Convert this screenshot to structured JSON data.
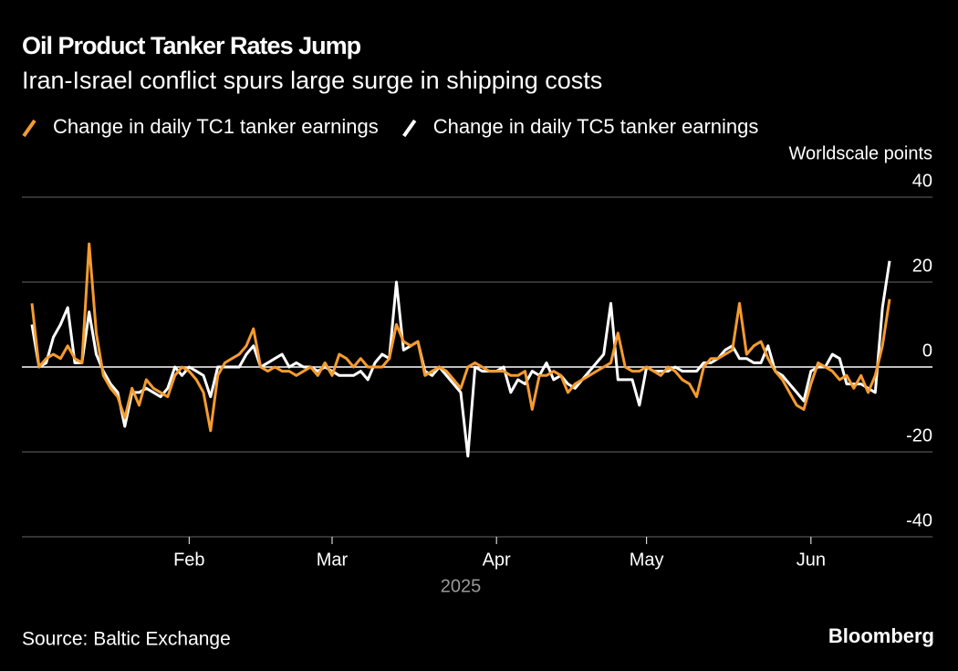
{
  "chart_data": {
    "type": "line",
    "title": "Oil Product Tanker Rates Jump",
    "subtitle": "Iran-Israel conflict spurs large surge in shipping costs",
    "ylabel": "Worldscale points",
    "xlabel": "2025",
    "source": "Source: Baltic Exchange",
    "credit": "Bloomberg",
    "categories": [
      null,
      null,
      null,
      null,
      null,
      null,
      null,
      null,
      null,
      null,
      null,
      null,
      null,
      null,
      null,
      null,
      null,
      null,
      null,
      null,
      null,
      null,
      "Feb",
      null,
      null,
      null,
      null,
      null,
      null,
      null,
      null,
      null,
      null,
      null,
      null,
      null,
      null,
      null,
      null,
      null,
      null,
      null,
      "Mar",
      null,
      null,
      null,
      null,
      null,
      null,
      null,
      null,
      null,
      null,
      null,
      null,
      null,
      null,
      null,
      null,
      null,
      null,
      null,
      null,
      null,
      null,
      "Apr",
      null,
      null,
      null,
      null,
      null,
      null,
      null,
      null,
      null,
      null,
      null,
      null,
      null,
      null,
      null,
      null,
      null,
      null,
      null,
      null,
      "May",
      null,
      null,
      null,
      null,
      null,
      null,
      null,
      null,
      null,
      null,
      null,
      null,
      null,
      null,
      null,
      null,
      null,
      null,
      null,
      null,
      null,
      null,
      "Jun",
      null,
      null,
      null,
      null,
      null,
      null,
      null,
      null,
      null,
      null,
      null
    ],
    "series": [
      {
        "name": "Change in daily TC1 tanker earnings",
        "color": "#f59b2e",
        "values": [
          15,
          0,
          2,
          3,
          2,
          5,
          2,
          1,
          29,
          8,
          -2,
          -5,
          -7,
          -12,
          -5,
          -9,
          -3,
          -5,
          -6,
          -7,
          -2,
          0,
          -1,
          -3,
          -6,
          -15,
          -2,
          1,
          2,
          3,
          5,
          9,
          0,
          -1,
          0,
          -1,
          -1,
          -2,
          -1,
          0,
          -2,
          1,
          -2,
          3,
          2,
          0,
          2,
          0,
          0,
          0,
          2,
          10,
          6,
          5,
          6,
          -2,
          -1,
          0,
          -1,
          -3,
          -5,
          0,
          1,
          0,
          -1,
          -1,
          -1,
          -2,
          -2,
          -1,
          -10,
          -2,
          -2,
          -1,
          -2,
          -6,
          -4,
          -3,
          -2,
          -1,
          0,
          1,
          8,
          0,
          -1,
          -1,
          0,
          -1,
          -2,
          0,
          -1,
          -3,
          -4,
          -7,
          0,
          2,
          2,
          3,
          4,
          15,
          3,
          5,
          6,
          2,
          -1,
          -3,
          -6,
          -9,
          -10,
          -4,
          1,
          0,
          -1,
          -3,
          -2,
          -5,
          -2,
          -6,
          -2,
          5,
          16
        ]
      },
      {
        "name": "Change in daily TC5 tanker earnings",
        "color": "#ffffff",
        "values": [
          10,
          0,
          1,
          7,
          10,
          14,
          1,
          1,
          13,
          3,
          -1,
          -4,
          -6,
          -14,
          -6,
          -6,
          -5,
          -6,
          -7,
          -5,
          0,
          -2,
          0,
          -1,
          -2,
          -7,
          0,
          0,
          0,
          0,
          3,
          5,
          0,
          1,
          2,
          3,
          0,
          1,
          0,
          0,
          -1,
          0,
          -1,
          -2,
          -2,
          -2,
          -1,
          -3,
          1,
          3,
          2,
          20,
          4,
          5,
          6,
          -1,
          -2,
          0,
          -2,
          -4,
          -6,
          -21,
          0,
          -1,
          -1,
          -1,
          0,
          -6,
          -3,
          -4,
          -1,
          -2,
          1,
          -3,
          -2,
          -4,
          -5,
          -3,
          -1,
          1,
          3,
          15,
          -3,
          -3,
          -3,
          -9,
          0,
          -1,
          -1,
          -1,
          0,
          -1,
          -1,
          -1,
          1,
          1,
          2,
          4,
          5,
          2,
          2,
          1,
          1,
          5,
          -1,
          -2,
          -4,
          -6,
          -8,
          -1,
          0,
          0,
          3,
          2,
          -4,
          -4,
          -4,
          -5,
          -6,
          14,
          25
        ]
      }
    ],
    "ylim": [
      -40,
      40
    ],
    "yticks": [
      40,
      20,
      0,
      -20,
      -40
    ],
    "grid": true
  }
}
